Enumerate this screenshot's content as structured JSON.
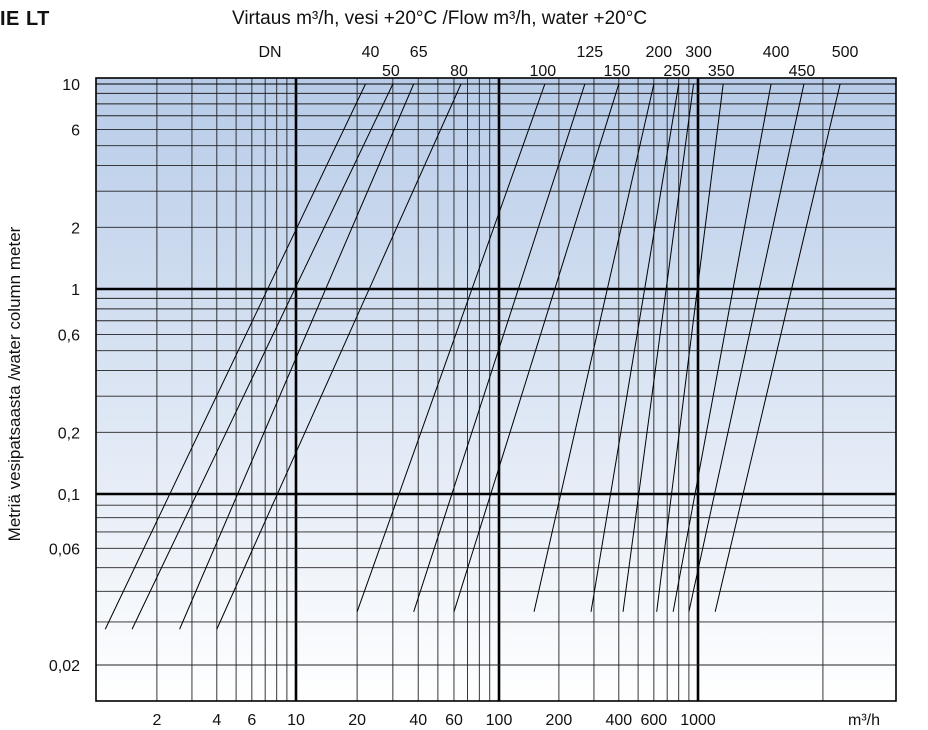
{
  "page": {
    "title": "IE LT",
    "top_title_text": "Virtaus m³/h, vesi +20°C /Flow m³/h, water +20°C",
    "y_axis_title": "Metriä vesipatsaasta /water column meter"
  },
  "chart_data": {
    "type": "line",
    "title": "Virtaus m³/h, vesi +20°C /Flow m³/h, water +20°C",
    "xlabel": "m³/h",
    "ylabel": "Metriä vesipatsaasta /water column meter",
    "y_scale": "log",
    "grid": true,
    "background_gradient": [
      "#b7cbe8",
      "#ffffff"
    ],
    "line_color": "#000000",
    "dn_label": "DN",
    "x_tick_labels": [
      "2",
      "4",
      "6",
      "10",
      "20",
      "40",
      "60",
      "100",
      "200",
      "400",
      "600",
      "1000",
      "m³/h"
    ],
    "y_tick_labels": [
      "10",
      "6",
      "2",
      "1",
      "0,6",
      "0,2",
      "0,1",
      "0,06",
      "0,02"
    ],
    "y_ticks": [
      10,
      6,
      2,
      1,
      0.6,
      0.2,
      0.1,
      0.06,
      0.02
    ],
    "series_labels_top": [
      "40",
      "65",
      "125",
      "200",
      "300",
      "400",
      "500"
    ],
    "series_labels_bottom": [
      "50",
      "80",
      "100",
      "150",
      "250",
      "350",
      "450"
    ],
    "series": [
      {
        "name": "40",
        "x": [
          1.1,
          22
        ],
        "y": [
          0.028,
          10
        ]
      },
      {
        "name": "50",
        "x": [
          1.5,
          30
        ],
        "y": [
          0.028,
          10
        ]
      },
      {
        "name": "65",
        "x": [
          2.6,
          38
        ],
        "y": [
          0.028,
          10
        ]
      },
      {
        "name": "80",
        "x": [
          4.0,
          65
        ],
        "y": [
          0.028,
          10
        ]
      },
      {
        "name": "100",
        "x": [
          20,
          170
        ],
        "y": [
          0.033,
          10
        ]
      },
      {
        "name": "125",
        "x": [
          38,
          270
        ],
        "y": [
          0.033,
          10
        ]
      },
      {
        "name": "150",
        "x": [
          60,
          400
        ],
        "y": [
          0.033,
          10
        ]
      },
      {
        "name": "200",
        "x": [
          150,
          600
        ],
        "y": [
          0.033,
          10
        ]
      },
      {
        "name": "250",
        "x": [
          290,
          800
        ],
        "y": [
          0.033,
          10
        ]
      },
      {
        "name": "300",
        "x": [
          420,
          950
        ],
        "y": [
          0.033,
          10
        ]
      },
      {
        "name": "350",
        "x": [
          620,
          1150
        ],
        "y": [
          0.033,
          10
        ]
      },
      {
        "name": "400",
        "x": [
          750,
          1500
        ],
        "y": [
          0.033,
          10
        ]
      },
      {
        "name": "450",
        "x": [
          900,
          1800
        ],
        "y": [
          0.033,
          10
        ]
      },
      {
        "name": "500",
        "x": [
          1100,
          2200
        ],
        "y": [
          0.033,
          10
        ]
      }
    ]
  }
}
